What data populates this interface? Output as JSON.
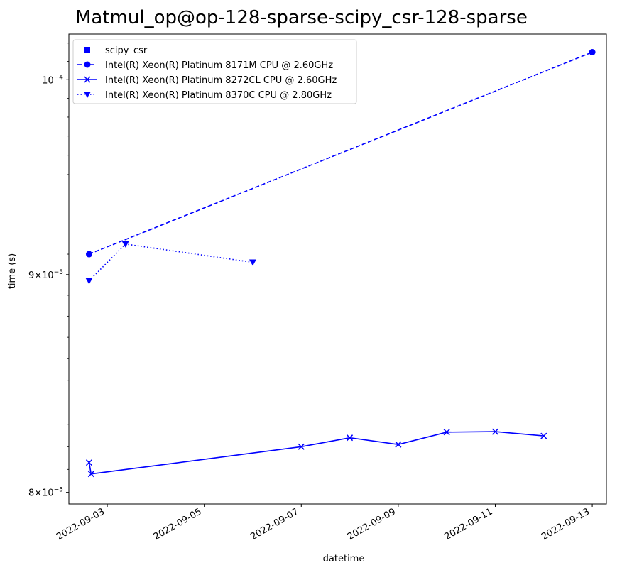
{
  "chart_data": {
    "type": "line",
    "title": "Matmul_op@op-128-sparse-scipy_csr-128-sparse",
    "xlabel": "datetime",
    "ylabel": "time (s)",
    "y_scale": "log",
    "ylim": [
      7.95e-05,
      0.0001025
    ],
    "xlim": [
      "2022-09-02T05:00",
      "2022-09-13T07:00"
    ],
    "x_ticks": [
      "2022-09-03",
      "2022-09-05",
      "2022-09-07",
      "2022-09-09",
      "2022-09-11",
      "2022-09-13"
    ],
    "y_ticks": [
      {
        "value": 8e-05,
        "mantissa": "8",
        "base": "10",
        "exp": "−5"
      },
      {
        "value": 9e-05,
        "mantissa": "9",
        "base": "10",
        "exp": "−5"
      },
      {
        "value": 0.0001,
        "mantissa": "",
        "base": "10",
        "exp": "−4"
      }
    ],
    "grid": false,
    "legend_position": "upper-left",
    "color": "#0000ff",
    "legend": [
      {
        "label": "scipy_csr",
        "marker": "square",
        "linestyle": "none"
      },
      {
        "label": "Intel(R) Xeon(R) Platinum 8171M CPU @ 2.60GHz",
        "marker": "circle",
        "linestyle": "dashed"
      },
      {
        "label": "Intel(R) Xeon(R) Platinum 8272CL CPU @ 2.60GHz",
        "marker": "x",
        "linestyle": "solid"
      },
      {
        "label": "Intel(R) Xeon(R) Platinum 8370C CPU @ 2.80GHz",
        "marker": "triangle-down",
        "linestyle": "dotted"
      }
    ],
    "series": [
      {
        "name": "Intel(R) Xeon(R) Platinum 8171M CPU @ 2.60GHz",
        "marker": "circle",
        "linestyle": "dashed",
        "points": [
          {
            "x": "2022-09-02T15:00",
            "y": 9.1e-05
          },
          {
            "x": "2022-09-13T00:00",
            "y": 0.0001015
          }
        ]
      },
      {
        "name": "Intel(R) Xeon(R) Platinum 8272CL CPU @ 2.60GHz",
        "marker": "x",
        "linestyle": "solid",
        "points": [
          {
            "x": "2022-09-02T15:00",
            "y": 8.13e-05
          },
          {
            "x": "2022-09-02T16:00",
            "y": 8.08e-05
          },
          {
            "x": "2022-09-07T00:00",
            "y": 8.2e-05
          },
          {
            "x": "2022-09-08T00:00",
            "y": 8.24e-05
          },
          {
            "x": "2022-09-09T00:00",
            "y": 8.21e-05
          },
          {
            "x": "2022-09-10T00:00",
            "y": 8.265e-05
          },
          {
            "x": "2022-09-11T00:00",
            "y": 8.267e-05
          },
          {
            "x": "2022-09-12T00:00",
            "y": 8.248e-05
          }
        ]
      },
      {
        "name": "Intel(R) Xeon(R) Platinum 8370C CPU @ 2.80GHz",
        "marker": "triangle-down",
        "linestyle": "dotted",
        "points": [
          {
            "x": "2022-09-02T15:00",
            "y": 8.97e-05
          },
          {
            "x": "2022-09-03T09:00",
            "y": 9.15e-05
          },
          {
            "x": "2022-09-06T00:00",
            "y": 9.06e-05
          }
        ]
      }
    ]
  }
}
